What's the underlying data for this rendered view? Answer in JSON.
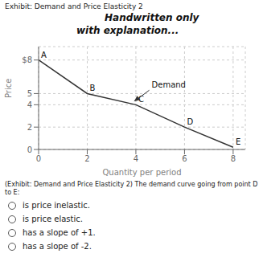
{
  "chart_data": {
    "type": "line",
    "title": "Exhibit: Demand and Price Elasticity 2",
    "xlabel": "Quantity per period",
    "ylabel": "Price",
    "x": [
      0,
      2,
      4,
      6,
      8
    ],
    "values": [
      8,
      5,
      4,
      2,
      0.2
    ],
    "color": "#333333",
    "xlim": [
      0,
      8.5
    ],
    "ylim": [
      0,
      9.2
    ],
    "xticks": [
      0,
      2,
      4,
      6,
      8
    ],
    "yticks": [
      0,
      2,
      4,
      5,
      {
        "value": 8,
        "label": "$8"
      }
    ],
    "grid": true,
    "annotations": [
      {
        "text": "Handwritten only"
      },
      {
        "text": "with explanation..."
      },
      {
        "text": "A",
        "x": 0,
        "y": 8
      },
      {
        "text": "B",
        "x": 2,
        "y": 5
      },
      {
        "text": "C",
        "x": 4,
        "y": 4
      },
      {
        "text": "D",
        "x": 6,
        "y": 2
      },
      {
        "text": "E",
        "x": 8,
        "y": 0.2
      },
      {
        "text": "Demand",
        "x": 4.55,
        "y": 5.3,
        "arrow": true
      }
    ],
    "caption": "(Exhibit: Demand and Price Elasticity 2) The demand curve going from point D to E:",
    "choices": [
      "is price inelastic.",
      "is price elastic.",
      "has a slope of +1.",
      "has a slope of -2."
    ]
  }
}
